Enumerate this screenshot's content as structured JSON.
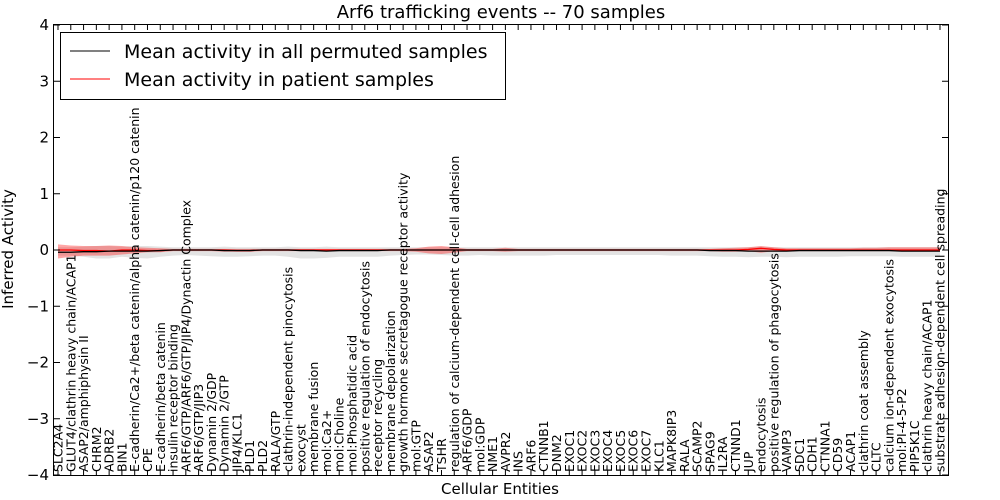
{
  "chart_data": {
    "type": "line",
    "title": "Arf6 trafficking events -- 70 samples",
    "xlabel": "Cellular Entities",
    "ylabel": "Inferred Activity",
    "ylim": [
      -4,
      4
    ],
    "yticks": [
      -4,
      -3,
      -2,
      -1,
      0,
      1,
      2,
      3,
      4
    ],
    "legend_position": "top-left",
    "grid": false,
    "categories": [
      "SLC2A4",
      "GLUT4/clathrin heavy chain/ACAP1",
      "ASAP2/amphiphysin II",
      "CHRM2",
      "ADRB2",
      "BIN1",
      "E-cadherin/Ca2+/beta catenin/alpha catenin/p120 catenin",
      "CPE",
      "E-cadherin/beta catenin",
      "insulin receptor binding",
      "ARF6/GTP/ARF6/GTP/JIP4/Dynactin Complex",
      "ARF6/GTP/JIP3",
      "Dynamin 2/GDP",
      "Dynamin 2/GTP",
      "JIP4/KLC1",
      "PLD1",
      "PLD2",
      "RALA/GTP",
      "clathrin-independent pinocytosis",
      "exocyst",
      "membrane fusion",
      "mol:Ca2+",
      "mol:Choline",
      "mol:Phosphatidic acid",
      "positive regulation of endocytosis",
      "receptor recycling",
      "membrane depolarization",
      "growth hormone secretagogue receptor activity",
      "mol:GTP",
      "ASAP2",
      "TSHR",
      "regulation of calcium-dependent cell-cell adhesion",
      "ARF6/GDP",
      "mol:GDP",
      "NME1",
      "AVPR2",
      "INS",
      "ARF6",
      "CTNNB1",
      "DNM2",
      "EXOC1",
      "EXOC2",
      "EXOC3",
      "EXOC4",
      "EXOC5",
      "EXOC6",
      "EXOC7",
      "KLC1",
      "MAPK8IP3",
      "RALA",
      "SCAMP2",
      "SPAG9",
      "IL2RA",
      "CTNND1",
      "JUP",
      "endocytosis",
      "positive regulation of phagocytosis",
      "VAMP3",
      "SDC1",
      "CDH1",
      "CTNNA1",
      "CD59",
      "ACAP1",
      "clathrin coat assembly",
      "CLTC",
      "calcium ion-dependent exocytosis",
      "mol:PI-4-5-P2",
      "PIP5K1C",
      "clathrin heavy chain/ACAP1",
      "substrate adhesion-dependent cell spreading"
    ],
    "series": [
      {
        "name": "Mean activity in all permuted samples",
        "color": "#000000",
        "values": [
          -0.04,
          -0.04,
          -0.03,
          -0.03,
          -0.02,
          -0.02,
          -0.02,
          -0.02,
          -0.01,
          0,
          0,
          0,
          0,
          -0.01,
          -0.01,
          -0.01,
          0,
          0,
          0,
          -0.01,
          -0.01,
          -0.02,
          -0.01,
          -0.01,
          -0.01,
          -0.01,
          0,
          0,
          0,
          0,
          0,
          0,
          0,
          0,
          0,
          0,
          0,
          0,
          0,
          0,
          0,
          0,
          0,
          0,
          0,
          0,
          0,
          0,
          0,
          0,
          0,
          -0.01,
          -0.01,
          -0.01,
          -0.02,
          -0.02,
          -0.02,
          -0.02,
          -0.01,
          -0.01,
          -0.01,
          -0.01,
          -0.01,
          -0.01,
          -0.01,
          -0.01,
          -0.02,
          -0.02,
          -0.02,
          -0.02
        ],
        "lower": [
          -0.1,
          -0.1,
          -0.12,
          -0.15,
          -0.15,
          -0.12,
          -0.14,
          -0.15,
          -0.12,
          -0.1,
          -0.09,
          -0.1,
          -0.11,
          -0.12,
          -0.12,
          -0.11,
          -0.1,
          -0.1,
          -0.12,
          -0.15,
          -0.15,
          -0.14,
          -0.12,
          -0.12,
          -0.12,
          -0.12,
          -0.1,
          -0.09,
          -0.08,
          -0.08,
          -0.09,
          -0.1,
          -0.1,
          -0.09,
          -0.1,
          -0.1,
          -0.1,
          -0.1,
          -0.1,
          -0.09,
          -0.09,
          -0.09,
          -0.09,
          -0.09,
          -0.09,
          -0.09,
          -0.09,
          -0.09,
          -0.1,
          -0.1,
          -0.1,
          -0.11,
          -0.12,
          -0.12,
          -0.13,
          -0.12,
          -0.12,
          -0.13,
          -0.12,
          -0.12,
          -0.12,
          -0.12,
          -0.11,
          -0.11,
          -0.11,
          -0.11,
          -0.12,
          -0.12,
          -0.12,
          -0.12
        ],
        "upper": [
          0.05,
          0.05,
          0.06,
          0.07,
          0.07,
          0.06,
          0.07,
          0.07,
          0.06,
          0.05,
          0.05,
          0.05,
          0.05,
          0.06,
          0.05,
          0.05,
          0.05,
          0.05,
          0.06,
          0.05,
          0.05,
          0.06,
          0.05,
          0.05,
          0.05,
          0.05,
          0.05,
          0.05,
          0.05,
          0.05,
          0.05,
          0.05,
          0.05,
          0.05,
          0.05,
          0.05,
          0.05,
          0.05,
          0.05,
          0.05,
          0.05,
          0.05,
          0.05,
          0.05,
          0.05,
          0.05,
          0.05,
          0.05,
          0.05,
          0.05,
          0.05,
          0.05,
          0.05,
          0.05,
          0.05,
          0.06,
          0.05,
          0.05,
          0.05,
          0.05,
          0.05,
          0.05,
          0.05,
          0.05,
          0.05,
          0.05,
          0.05,
          0.05,
          0.05,
          0.05
        ]
      },
      {
        "name": "Mean activity in patient samples",
        "color": "#ff0000",
        "values": [
          0,
          0,
          -0.01,
          -0.01,
          -0.02,
          0,
          0,
          -0.01,
          -0.01,
          0,
          0,
          0,
          0,
          0,
          -0.01,
          -0.01,
          0,
          0,
          0,
          0,
          0,
          0,
          0,
          0,
          0,
          0,
          0,
          0,
          0,
          0,
          0,
          0,
          0,
          0,
          0,
          0,
          0,
          0,
          0,
          0,
          0,
          0,
          0,
          0,
          0,
          0,
          0,
          0,
          0,
          0,
          0,
          0,
          0,
          0,
          0.01,
          0.03,
          0.01,
          0,
          0,
          0,
          0,
          0,
          0,
          0,
          0,
          0,
          0,
          0,
          0,
          0
        ],
        "lower": [
          -0.15,
          -0.12,
          -0.1,
          -0.1,
          -0.1,
          -0.08,
          -0.06,
          -0.04,
          -0.04,
          -0.02,
          -0.02,
          -0.02,
          -0.02,
          -0.03,
          -0.03,
          -0.03,
          -0.02,
          -0.02,
          -0.02,
          -0.02,
          -0.02,
          -0.02,
          -0.02,
          -0.02,
          -0.02,
          -0.02,
          -0.02,
          -0.02,
          -0.03,
          -0.06,
          -0.07,
          -0.05,
          -0.02,
          -0.02,
          -0.02,
          -0.03,
          -0.02,
          -0.02,
          -0.02,
          -0.02,
          -0.02,
          -0.02,
          -0.02,
          -0.02,
          -0.02,
          -0.02,
          -0.02,
          -0.02,
          -0.02,
          -0.02,
          -0.02,
          -0.02,
          -0.03,
          -0.03,
          -0.02,
          -0.05,
          -0.02,
          -0.02,
          -0.02,
          -0.02,
          -0.02,
          -0.02,
          -0.02,
          -0.02,
          -0.02,
          -0.02,
          -0.02,
          -0.02,
          -0.02,
          -0.02
        ],
        "upper": [
          0.1,
          0.08,
          0.07,
          0.07,
          0.08,
          0.07,
          0.05,
          0.04,
          0.03,
          0.02,
          0.02,
          0.02,
          0.02,
          0.02,
          0.02,
          0.02,
          0.02,
          0.02,
          0.02,
          0.02,
          0.02,
          0.02,
          0.02,
          0.02,
          0.02,
          0.02,
          0.02,
          0.02,
          0.03,
          0.06,
          0.07,
          0.05,
          0.02,
          0.02,
          0.02,
          0.04,
          0.02,
          0.02,
          0.02,
          0.02,
          0.02,
          0.02,
          0.02,
          0.02,
          0.02,
          0.02,
          0.02,
          0.02,
          0.02,
          0.02,
          0.02,
          0.02,
          0.03,
          0.04,
          0.05,
          0.07,
          0.05,
          0.03,
          0.03,
          0.03,
          0.03,
          0.03,
          0.03,
          0.04,
          0.04,
          0.05,
          0.05,
          0.05,
          0.05,
          0.05
        ]
      }
    ]
  }
}
